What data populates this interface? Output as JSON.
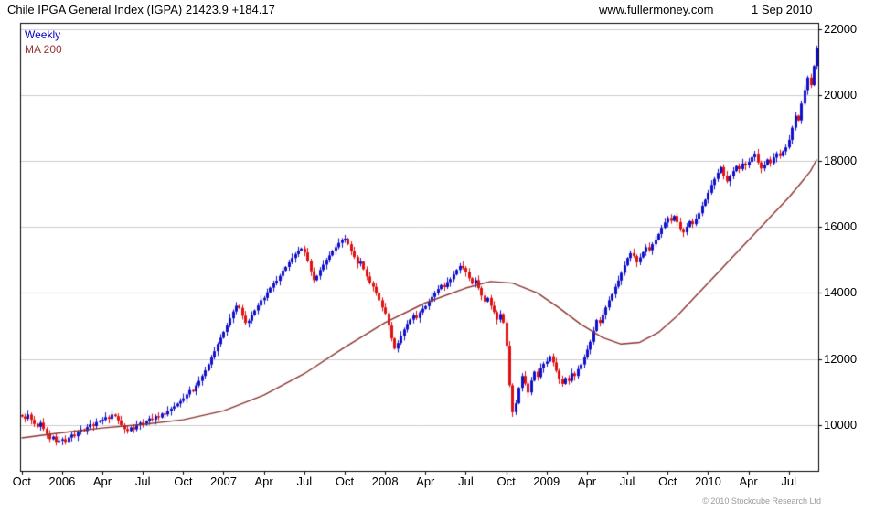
{
  "header": {
    "title": "Chile IPGA General Index (IGPA) 21423.9 +184.17",
    "website": "www.fullermoney.com",
    "date": "1 Sep 2010"
  },
  "legend": {
    "series1": "Weekly",
    "series2": "MA 200"
  },
  "footer": {
    "copyright": "© 2010 Stockcube Research Ltd"
  },
  "colors": {
    "up": "#1111cc",
    "down": "#e01010",
    "ma": "#8a3331",
    "grid": "#cccccc",
    "border": "#000000"
  },
  "chart_data": {
    "type": "candlestick",
    "period": "weekly",
    "title": "Chile IPGA General Index (IGPA)",
    "last_price": 21423.9,
    "change": "+184.17",
    "start": "Oct 2005",
    "end": "1 Sep 2010",
    "legend": [
      "Weekly",
      "MA 200"
    ],
    "y_axis": {
      "side": "right",
      "min": 8600,
      "max": 22200,
      "ticks": [
        10000,
        12000,
        14000,
        16000,
        18000,
        20000,
        22000
      ]
    },
    "x_axis": {
      "labels": [
        [
          "Oct",
          0
        ],
        [
          "2006",
          13
        ],
        [
          "Apr",
          26
        ],
        [
          "Jul",
          39
        ],
        [
          "Oct",
          52
        ],
        [
          "2007",
          65
        ],
        [
          "Apr",
          78
        ],
        [
          "Jul",
          91
        ],
        [
          "Oct",
          104
        ],
        [
          "2008",
          117
        ],
        [
          "Apr",
          130
        ],
        [
          "Jul",
          143
        ],
        [
          "Oct",
          156
        ],
        [
          "2009",
          169
        ],
        [
          "Apr",
          182
        ],
        [
          "Jul",
          195
        ],
        [
          "Oct",
          208
        ],
        [
          "2010",
          221
        ],
        [
          "Apr",
          234
        ],
        [
          "Jul",
          247
        ]
      ]
    },
    "weekly_closes": [
      10250,
      10180,
      10310,
      10150,
      10020,
      9940,
      10060,
      9870,
      9720,
      9560,
      9640,
      9480,
      9520,
      9560,
      9480,
      9610,
      9700,
      9650,
      9780,
      9860,
      9810,
      9930,
      10010,
      9960,
      10080,
      10120,
      10150,
      10230,
      10180,
      10310,
      10260,
      10130,
      9990,
      9870,
      9810,
      9920,
      9860,
      9990,
      10060,
      10000,
      10110,
      10190,
      10150,
      10260,
      10220,
      10340,
      10310,
      10420,
      10490,
      10560,
      10640,
      10720,
      10800,
      10920,
      11050,
      11010,
      11190,
      11330,
      11480,
      11650,
      11830,
      12040,
      12230,
      12450,
      12640,
      12820,
      13010,
      13230,
      13440,
      13610,
      13550,
      13310,
      13090,
      13160,
      13330,
      13470,
      13620,
      13780,
      13850,
      14020,
      14160,
      14290,
      14370,
      14520,
      14680,
      14790,
      14930,
      15060,
      15180,
      15290,
      15350,
      15230,
      14980,
      14660,
      14390,
      14520,
      14700,
      14860,
      15010,
      15140,
      15280,
      15390,
      15520,
      15610,
      15650,
      15480,
      15260,
      15090,
      14890,
      14950,
      14720,
      14500,
      14310,
      14190,
      14000,
      13780,
      13560,
      13380,
      13010,
      12620,
      12310,
      12480,
      12700,
      12890,
      13060,
      13190,
      13320,
      13240,
      13410,
      13520,
      13600,
      13740,
      13880,
      14010,
      14120,
      14240,
      14180,
      14330,
      14420,
      14560,
      14700,
      14820,
      14760,
      14640,
      14450,
      14280,
      14390,
      14150,
      13920,
      13740,
      13850,
      13610,
      13420,
      13190,
      13360,
      13100,
      12400,
      11200,
      10380,
      10650,
      11120,
      11480,
      11250,
      10980,
      11340,
      11610,
      11450,
      11720,
      11850,
      11920,
      12080,
      11890,
      11640,
      11380,
      11240,
      11420,
      11330,
      11560,
      11480,
      11690,
      11830,
      12050,
      12280,
      12520,
      12850,
      13180,
      13090,
      13340,
      13560,
      13780,
      13960,
      14190,
      14380,
      14610,
      14840,
      15060,
      15210,
      15120,
      14930,
      15080,
      15240,
      15390,
      15300,
      15480,
      15620,
      15790,
      15980,
      16140,
      16280,
      16190,
      16340,
      16150,
      15920,
      15840,
      16010,
      16180,
      16090,
      16250,
      16420,
      16650,
      16830,
      17040,
      17280,
      17460,
      17650,
      17820,
      17560,
      17390,
      17540,
      17700,
      17850,
      17760,
      17930,
      17870,
      17980,
      18120,
      18230,
      17960,
      17780,
      17890,
      18050,
      17940,
      18110,
      18240,
      18160,
      18300,
      18420,
      18650,
      19020,
      19380,
      19240,
      19750,
      20160,
      20540,
      20310,
      20890,
      21423.9
    ],
    "ma200_anchors": [
      [
        0,
        9600
      ],
      [
        13,
        9760
      ],
      [
        26,
        9900
      ],
      [
        39,
        10010
      ],
      [
        52,
        10150
      ],
      [
        65,
        10420
      ],
      [
        78,
        10900
      ],
      [
        91,
        11550
      ],
      [
        104,
        12350
      ],
      [
        117,
        13100
      ],
      [
        130,
        13700
      ],
      [
        143,
        14150
      ],
      [
        151,
        14350
      ],
      [
        158,
        14300
      ],
      [
        166,
        14000
      ],
      [
        173,
        13550
      ],
      [
        180,
        13050
      ],
      [
        187,
        12650
      ],
      [
        193,
        12450
      ],
      [
        199,
        12500
      ],
      [
        205,
        12800
      ],
      [
        211,
        13300
      ],
      [
        217,
        13900
      ],
      [
        223,
        14500
      ],
      [
        229,
        15100
      ],
      [
        235,
        15700
      ],
      [
        241,
        16300
      ],
      [
        247,
        16900
      ],
      [
        251,
        17350
      ],
      [
        254,
        17700
      ],
      [
        256,
        18050
      ]
    ]
  }
}
